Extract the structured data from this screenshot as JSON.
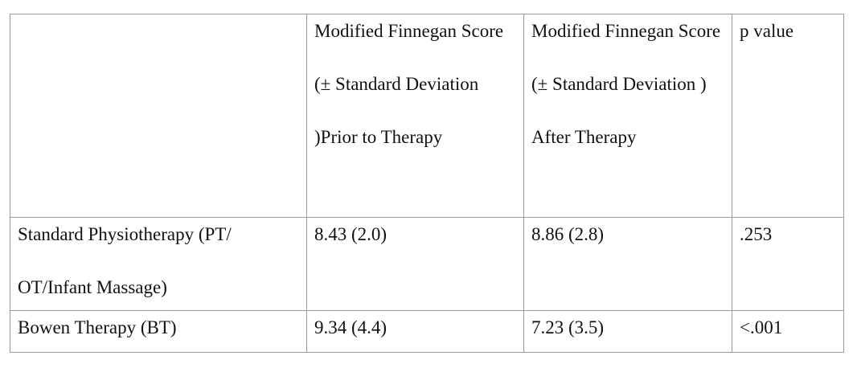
{
  "table": {
    "header": [
      "",
      "Modified Finnegan Score (± Standard Deviation )Prior to Therapy",
      "Modified Finnegan Score (± Standard Deviation ) After Therapy",
      "p value"
    ],
    "rows": [
      [
        "Standard Physiotherapy (PT/ OT/Infant Massage)",
        "8.43 (2.0)",
        "8.86 (2.8)",
        ".253"
      ],
      [
        "Bowen Therapy (BT)",
        "9.34 (4.4)",
        "7.23 (3.5)",
        "<.001"
      ]
    ]
  }
}
